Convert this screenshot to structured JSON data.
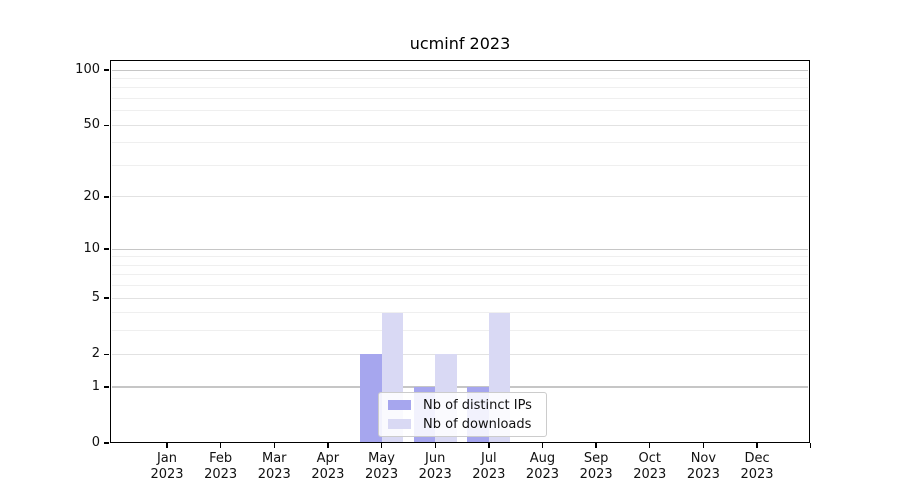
{
  "chart_data": {
    "type": "bar",
    "title": "ucminf 2023",
    "xlabel": "",
    "ylabel": "",
    "categories": [
      "Jan",
      "Feb",
      "Mar",
      "Apr",
      "May",
      "Jun",
      "Jul",
      "Aug",
      "Sep",
      "Oct",
      "Nov",
      "Dec"
    ],
    "category_year": "2023",
    "series": [
      {
        "name": "Nb of distinct IPs",
        "color": "#a6a6ee",
        "values": [
          0,
          0,
          0,
          0,
          2,
          1,
          1,
          0,
          0,
          0,
          0,
          0
        ]
      },
      {
        "name": "Nb of downloads",
        "color": "#d9d9f4",
        "values": [
          0,
          0,
          0,
          0,
          4,
          2,
          4,
          0,
          0,
          0,
          0,
          0
        ]
      }
    ],
    "y_axis": {
      "scale": "log10(1+x)",
      "ticks": [
        0,
        1,
        2,
        5,
        10,
        20,
        50,
        100
      ],
      "minor_ticks": [
        3,
        4,
        6,
        7,
        8,
        9,
        30,
        40,
        60,
        70,
        80,
        90
      ],
      "ylim": [
        0,
        118
      ]
    },
    "x_axis": {
      "extra_right_tick": true
    },
    "grid": true,
    "legend_position": "lower center",
    "colors": {
      "decade_gridline": "#c6c6c6",
      "major_gridline": "#e2e2e2",
      "minor_gridline": "#efefef",
      "axis": "#000000"
    }
  }
}
